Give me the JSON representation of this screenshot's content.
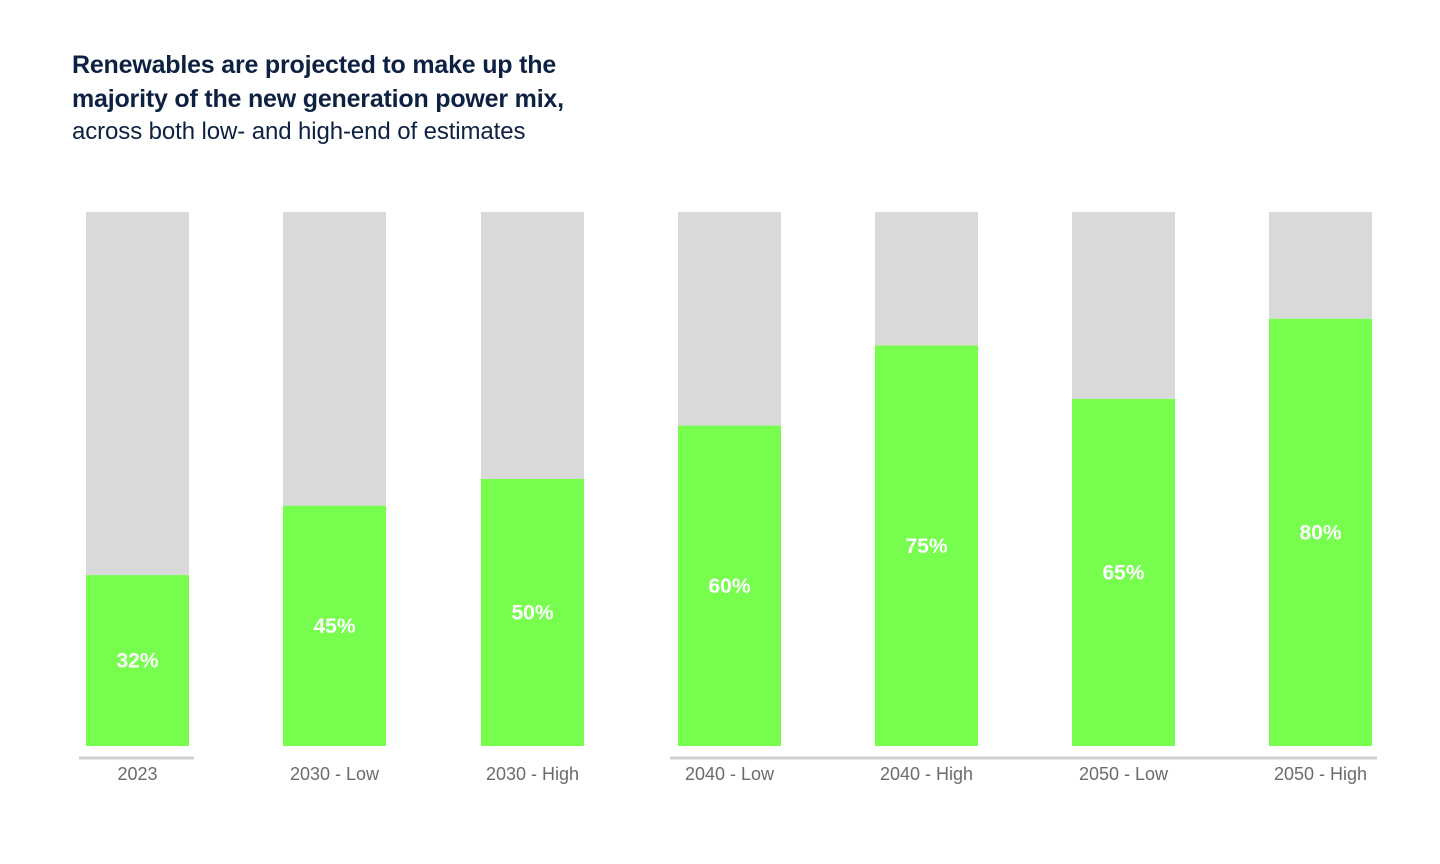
{
  "title": {
    "line1": "Renewables are projected to make up the",
    "line2": "majority of the new generation power mix,",
    "subtitle": "across both low- and high-end of estimates"
  },
  "colors": {
    "renewables": "#76fd4e",
    "remainder": "#d9d9d9",
    "axis": "#d0d0d0",
    "title": "#0d2142",
    "tick": "#6b6b6b"
  },
  "chart_data": {
    "type": "bar",
    "stacked": true,
    "ylim": [
      0,
      100
    ],
    "grid": false,
    "legend": "none",
    "categories": [
      "2023",
      "2030 - Low",
      "2030 - High",
      "2040 - Low",
      "2040 - High",
      "2050 - Low",
      "2050 - High"
    ],
    "groups": [
      [
        "2023"
      ],
      [
        "2030 - Low",
        "2030 - High"
      ],
      [
        "2040 - Low",
        "2040 - High"
      ],
      [
        "2050 - Low",
        "2050 - High"
      ]
    ],
    "series": [
      {
        "values": [
          32,
          45,
          50,
          60,
          75,
          65,
          80
        ],
        "color": "#76fd4e"
      },
      {
        "values": [
          68,
          55,
          50,
          40,
          25,
          35,
          20
        ],
        "color": "#d9d9d9"
      }
    ],
    "data_labels": [
      "32%",
      "45%",
      "50%",
      "60%",
      "75%",
      "65%",
      "80%"
    ]
  }
}
